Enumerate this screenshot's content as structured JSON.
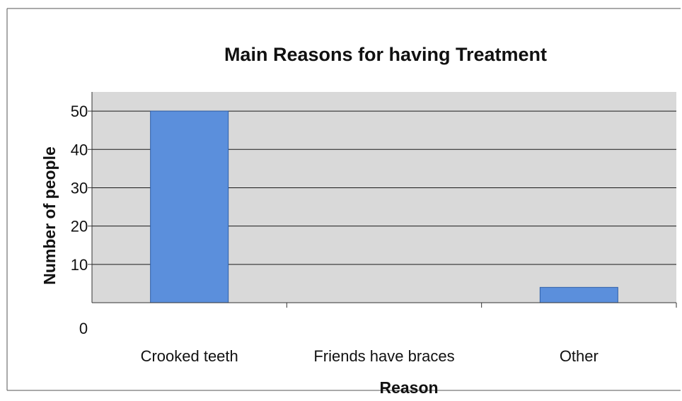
{
  "chart_data": {
    "type": "bar",
    "title": "Main Reasons for having Treatment",
    "xlabel": "Reason",
    "ylabel": "Number of people",
    "categories": [
      "Crooked teeth",
      "Friends have braces",
      "Other"
    ],
    "values": [
      50,
      0,
      4
    ],
    "ylim": [
      0,
      55
    ],
    "yticks": [
      "0",
      "10",
      "20",
      "30",
      "40",
      "50"
    ],
    "grid": true,
    "legend": "none",
    "colors": {
      "bar": "#5b8fdc",
      "bar_stroke": "#2e5fa8",
      "plot_background": "#d9d9d9",
      "gridline": "#1a1a1a",
      "frame": "#555555"
    }
  }
}
